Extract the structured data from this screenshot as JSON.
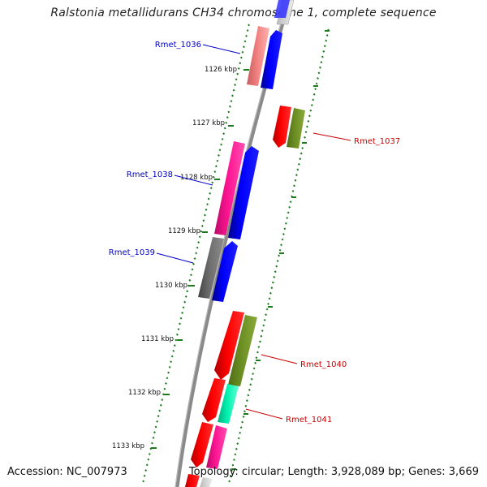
{
  "title": "Ralstonia metallidurans CH34 chromosome 1, complete sequence",
  "footer": {
    "accession": "Accession: NC_007973",
    "summary": "Topology: circular; Length: 3,928,089 bp; Genes: 3,669"
  },
  "ticks": [
    {
      "label": "1126 kbp"
    },
    {
      "label": "1127 kbp"
    },
    {
      "label": "1128 kbp"
    },
    {
      "label": "1129 kbp"
    },
    {
      "label": "1130 kbp"
    },
    {
      "label": "1131 kbp"
    },
    {
      "label": "1132 kbp"
    },
    {
      "label": "1133 kbp"
    }
  ],
  "gene_labels": [
    {
      "label": "Rmet_1036",
      "color": "#0000c8"
    },
    {
      "label": "Rmet_1037",
      "color": "#c80000"
    },
    {
      "label": "Rmet_1038",
      "color": "#0000c8"
    },
    {
      "label": "Rmet_1039",
      "color": "#0000c8"
    },
    {
      "label": "Rmet_1040",
      "color": "#c80000"
    },
    {
      "label": "Rmet_1041",
      "color": "#c80000"
    }
  ],
  "colors": {
    "backbone": "#8a8a8a",
    "tick_marks": "#1e7a1e",
    "forward_strand": "#0000ff",
    "cds_red": "#ff0000",
    "cds_olive": "#6b8e23",
    "cds_pink": "#ff1493",
    "cds_gray": "#6e6e6e",
    "cds_salmon": "#f08080",
    "cds_aqua": "#00e5a0"
  }
}
